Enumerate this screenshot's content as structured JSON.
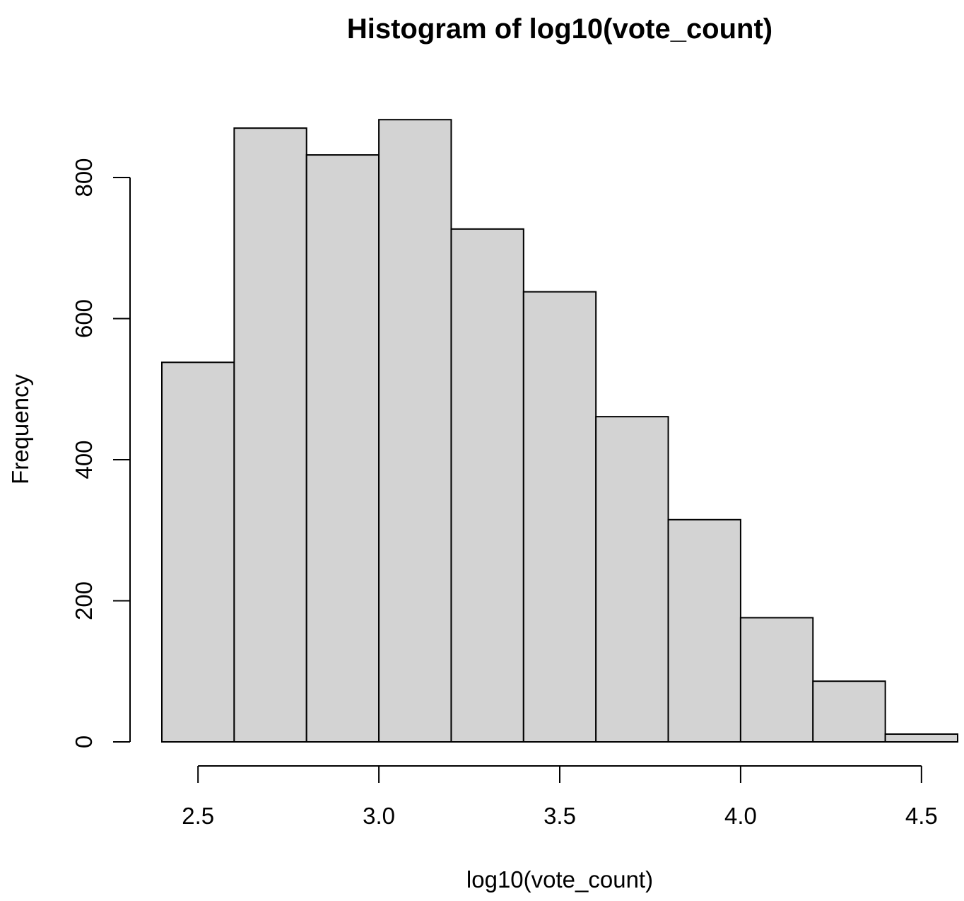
{
  "chart_data": {
    "type": "bar",
    "title": "Histogram of log10(vote_count)",
    "xlabel": "log10(vote_count)",
    "ylabel": "Frequency",
    "bin_edges": [
      2.4,
      2.6,
      2.8,
      3.0,
      3.2,
      3.4,
      3.6,
      3.8,
      4.0,
      4.2,
      4.4,
      4.6
    ],
    "values": [
      538,
      870,
      832,
      882,
      727,
      638,
      461,
      315,
      176,
      86,
      11
    ],
    "xlim": [
      2.4,
      4.6
    ],
    "ylim": [
      0,
      882
    ],
    "x_ticks": [
      2.5,
      3.0,
      3.5,
      4.0,
      4.5
    ],
    "x_tick_labels": [
      "2.5",
      "3.0",
      "3.5",
      "4.0",
      "4.5"
    ],
    "y_ticks": [
      0,
      200,
      400,
      600,
      800
    ],
    "y_tick_labels": [
      "0",
      "200",
      "400",
      "600",
      "800"
    ],
    "bar_fill": "#d3d3d3",
    "bar_stroke": "#000000",
    "grid": false,
    "legend": "none"
  }
}
